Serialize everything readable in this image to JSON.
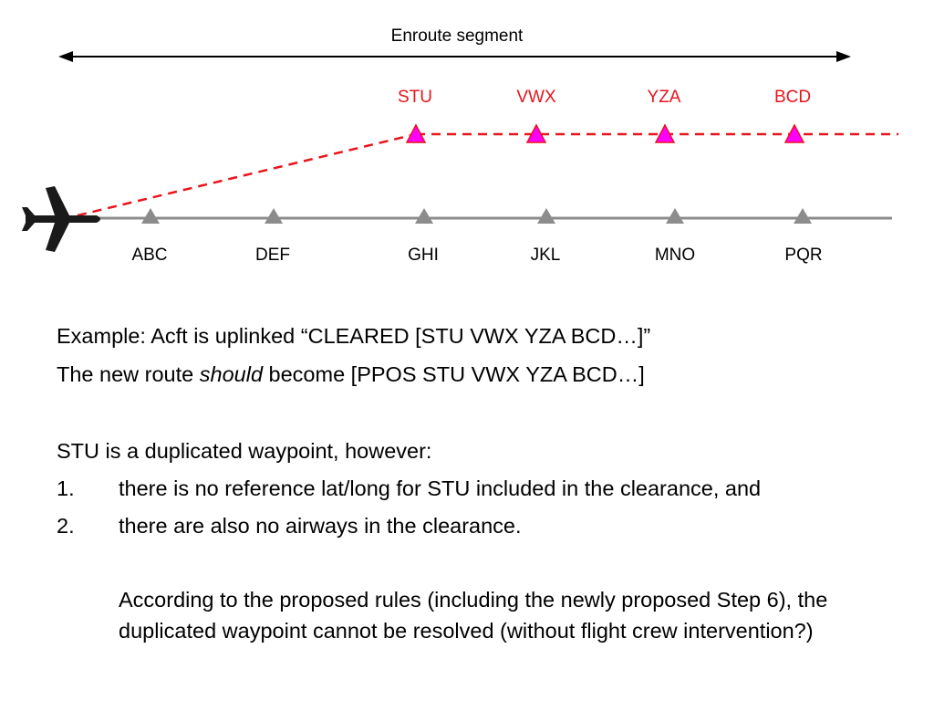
{
  "diagram": {
    "enroute_label": "Enroute segment",
    "aircraft_icon": "airplane-icon",
    "current_route": {
      "color": "#808080",
      "waypoints": [
        "ABC",
        "DEF",
        "GHI",
        "JKL",
        "MNO",
        "PQR"
      ]
    },
    "new_route": {
      "color": "#e8141c",
      "marker_color": "#ff00ff",
      "waypoints": [
        "STU",
        "VWX",
        "YZA",
        "BCD"
      ]
    }
  },
  "text": {
    "example_line": "Example: Acft is uplinked “CLEARED [STU VWX YZA BCD…]”",
    "route_prefix": "The new route ",
    "route_emphasis": "should",
    "route_suffix": " become [PPOS STU VWX YZA BCD…]",
    "dup_intro": "STU is a duplicated waypoint, however:",
    "list": [
      {
        "num": "1.",
        "text": "there is no reference lat/long for STU included in the clearance, and"
      },
      {
        "num": "2.",
        "text": "there are also no airways in the clearance."
      }
    ],
    "conclusion": "According to the proposed rules (including the newly proposed Step 6), the duplicated waypoint cannot be resolved (without flight crew intervention?)"
  }
}
